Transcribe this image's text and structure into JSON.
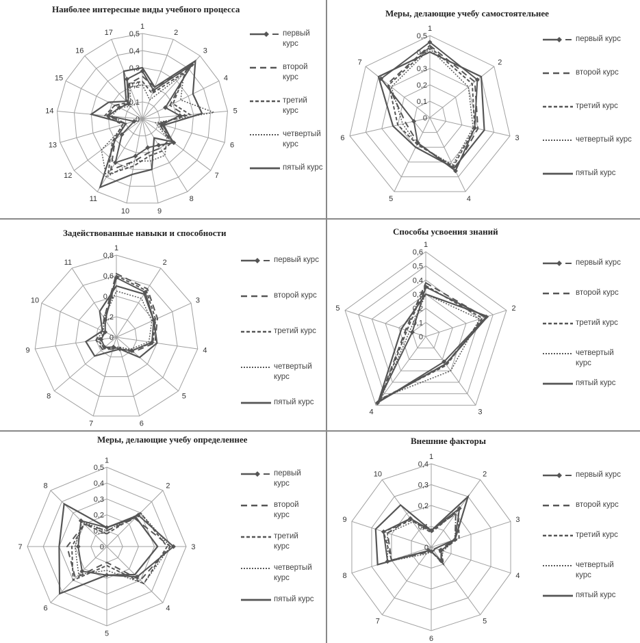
{
  "chart_data": [
    {
      "type": "radar",
      "title": "Наиболее интересные виды учебного процесса",
      "categories": [
        "1",
        "2",
        "3",
        "4",
        "5",
        "6",
        "7",
        "8",
        "9",
        "10",
        "11",
        "12",
        "13",
        "14",
        "15",
        "16",
        "17"
      ],
      "ylim": [
        0,
        0.5
      ],
      "ticks": [
        "0",
        "0,1",
        "0,2",
        "0,3",
        "0,4",
        "0,5"
      ],
      "grid": true,
      "legend_position": "right",
      "series": [
        {
          "name": "первый курс",
          "values": [
            0.28,
            0.18,
            0.43,
            0.15,
            0.22,
            0.12,
            0.23,
            0.18,
            0.17,
            0.22,
            0.3,
            0.15,
            0.05,
            0.2,
            0.15,
            0.12,
            0.25
          ]
        },
        {
          "name": "второй курс",
          "values": [
            0.25,
            0.2,
            0.4,
            0.18,
            0.25,
            0.1,
            0.2,
            0.2,
            0.2,
            0.25,
            0.35,
            0.2,
            0.1,
            0.2,
            0.18,
            0.12,
            0.22
          ]
        },
        {
          "name": "третий курс",
          "values": [
            0.22,
            0.16,
            0.38,
            0.2,
            0.28,
            0.1,
            0.22,
            0.22,
            0.22,
            0.28,
            0.38,
            0.22,
            0.12,
            0.22,
            0.18,
            0.13,
            0.22
          ]
        },
        {
          "name": "четвертый курс",
          "values": [
            0.2,
            0.12,
            0.36,
            0.25,
            0.42,
            0.08,
            0.18,
            0.25,
            0.25,
            0.25,
            0.4,
            0.3,
            0.1,
            0.18,
            0.15,
            0.1,
            0.2
          ]
        },
        {
          "name": "пятый курс",
          "values": [
            0.3,
            0.2,
            0.46,
            0.33,
            0.35,
            0.13,
            0.22,
            0.13,
            0.3,
            0.33,
            0.47,
            0.2,
            0.1,
            0.3,
            0.22,
            0.14,
            0.3
          ]
        }
      ]
    },
    {
      "type": "radar",
      "title": "Меры, делающие учебу самостоятельнее",
      "categories": [
        "1",
        "2",
        "3",
        "4",
        "5",
        "6",
        "7"
      ],
      "ylim": [
        0,
        0.5
      ],
      "ticks": [
        "0",
        "0,1",
        "0,2",
        "0,3",
        "0,4",
        "0,5"
      ],
      "grid": true,
      "legend_position": "right",
      "series": [
        {
          "name": "первый курс",
          "values": [
            0.46,
            0.37,
            0.28,
            0.36,
            0.17,
            0.1,
            0.38
          ]
        },
        {
          "name": "второй курс",
          "values": [
            0.44,
            0.35,
            0.3,
            0.35,
            0.17,
            0.15,
            0.33
          ]
        },
        {
          "name": "третий курс",
          "values": [
            0.43,
            0.33,
            0.28,
            0.33,
            0.18,
            0.2,
            0.32
          ]
        },
        {
          "name": "четвертый курс",
          "values": [
            0.42,
            0.3,
            0.27,
            0.32,
            0.18,
            0.17,
            0.3
          ]
        },
        {
          "name": "пятый курс",
          "values": [
            0.4,
            0.4,
            0.34,
            0.34,
            0.2,
            0.23,
            0.4
          ]
        }
      ]
    },
    {
      "type": "radar",
      "title": "Задействованные навыки и способности",
      "categories": [
        "1",
        "2",
        "3",
        "4",
        "5",
        "6",
        "7",
        "8",
        "9",
        "10",
        "11"
      ],
      "ylim": [
        0,
        0.8
      ],
      "ticks": [
        "0",
        "0,2",
        "0,4",
        "0,6",
        "0,8"
      ],
      "grid": true,
      "legend_position": "right",
      "series": [
        {
          "name": "первый курс",
          "values": [
            0.58,
            0.52,
            0.4,
            0.35,
            0.2,
            0.12,
            0.1,
            0.15,
            0.15,
            0.12,
            0.2
          ]
        },
        {
          "name": "второй курс",
          "values": [
            0.62,
            0.56,
            0.44,
            0.38,
            0.22,
            0.12,
            0.12,
            0.18,
            0.2,
            0.15,
            0.22
          ]
        },
        {
          "name": "третий курс",
          "values": [
            0.6,
            0.54,
            0.42,
            0.36,
            0.2,
            0.12,
            0.11,
            0.16,
            0.18,
            0.12,
            0.2
          ]
        },
        {
          "name": "четвертый курс",
          "values": [
            0.45,
            0.45,
            0.38,
            0.32,
            0.18,
            0.1,
            0.1,
            0.15,
            0.2,
            0.14,
            0.22
          ]
        },
        {
          "name": "пятый курс",
          "values": [
            0.5,
            0.5,
            0.4,
            0.4,
            0.3,
            0.12,
            0.14,
            0.28,
            0.3,
            0.15,
            0.3
          ]
        }
      ]
    },
    {
      "type": "radar",
      "title": "Способы усвоения знаний",
      "categories": [
        "1",
        "2",
        "3",
        "4",
        "5"
      ],
      "ylim": [
        0,
        0.6
      ],
      "ticks": [
        "0",
        "0,1",
        "0,2",
        "0,3",
        "0,4",
        "0,5",
        "0,6"
      ],
      "grid": true,
      "legend_position": "right",
      "series": [
        {
          "name": "первый курс",
          "values": [
            0.35,
            0.45,
            0.22,
            0.58,
            0.1
          ]
        },
        {
          "name": "второй курс",
          "values": [
            0.38,
            0.44,
            0.24,
            0.56,
            0.15
          ]
        },
        {
          "name": "третий курс",
          "values": [
            0.36,
            0.42,
            0.25,
            0.55,
            0.14
          ]
        },
        {
          "name": "четвертый курс",
          "values": [
            0.3,
            0.4,
            0.3,
            0.54,
            0.12
          ]
        },
        {
          "name": "пятый курс",
          "values": [
            0.3,
            0.46,
            0.24,
            0.57,
            0.18
          ]
        }
      ]
    },
    {
      "type": "radar",
      "title": "Меры, делающие учебу определеннее",
      "categories": [
        "1",
        "2",
        "3",
        "4",
        "5",
        "6",
        "7",
        "8"
      ],
      "ylim": [
        0,
        0.5
      ],
      "ticks": [
        "0",
        "0,1",
        "0,2",
        "0,3",
        "0,4",
        "0,5"
      ],
      "grid": true,
      "legend_position": "right",
      "series": [
        {
          "name": "первый курс",
          "values": [
            0.12,
            0.28,
            0.42,
            0.27,
            0.18,
            0.22,
            0.18,
            0.23
          ]
        },
        {
          "name": "второй курс",
          "values": [
            0.1,
            0.25,
            0.4,
            0.3,
            0.1,
            0.28,
            0.25,
            0.2
          ]
        },
        {
          "name": "третий курс",
          "values": [
            0.08,
            0.3,
            0.38,
            0.33,
            0.12,
            0.3,
            0.22,
            0.2
          ]
        },
        {
          "name": "четвертый курс",
          "values": [
            0.1,
            0.3,
            0.4,
            0.33,
            0.15,
            0.25,
            0.2,
            0.22
          ]
        },
        {
          "name": "пятый курс",
          "values": [
            0.12,
            0.26,
            0.32,
            0.25,
            0.18,
            0.42,
            0.3,
            0.38
          ]
        }
      ]
    },
    {
      "type": "radar",
      "title": "Внешние факторы",
      "categories": [
        "1",
        "2",
        "3",
        "4",
        "5",
        "6",
        "7",
        "8",
        "9",
        "10"
      ],
      "ylim": [
        0,
        0.4
      ],
      "ticks": [
        "0",
        "0,1",
        "0,2",
        "0,3",
        "0,4"
      ],
      "grid": true,
      "legend_position": "right",
      "series": [
        {
          "name": "первый курс",
          "values": [
            0.08,
            0.23,
            0.12,
            0.05,
            0.08,
            0.02,
            0.02,
            0.22,
            0.24,
            0.17
          ]
        },
        {
          "name": "второй курс",
          "values": [
            0.08,
            0.2,
            0.12,
            0.04,
            0.1,
            0.02,
            0.03,
            0.2,
            0.22,
            0.17
          ]
        },
        {
          "name": "третий курс",
          "values": [
            0.07,
            0.22,
            0.14,
            0.05,
            0.1,
            0.02,
            0.02,
            0.2,
            0.24,
            0.16
          ]
        },
        {
          "name": "четвертый курс",
          "values": [
            0.08,
            0.2,
            0.12,
            0.06,
            0.08,
            0.02,
            0.04,
            0.22,
            0.22,
            0.15
          ]
        },
        {
          "name": "пятый курс",
          "values": [
            0.08,
            0.3,
            0.12,
            0.02,
            0.02,
            0.02,
            0.02,
            0.27,
            0.28,
            0.25
          ]
        }
      ]
    }
  ],
  "colors": {
    "series": "#555555",
    "grid": "#a0a0a0",
    "divider": "#888888"
  }
}
